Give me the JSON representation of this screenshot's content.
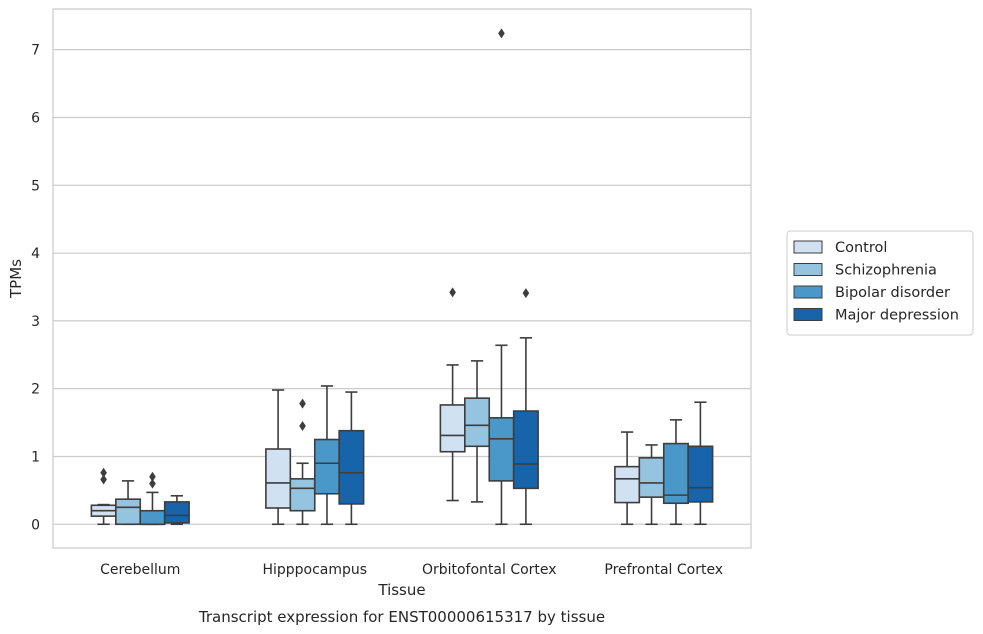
{
  "caption": "Transcript expression for ENST00000615317 by tissue",
  "chart_data": {
    "type": "boxplot",
    "xlabel": "Tissue",
    "ylabel": "TPMs",
    "ylim": [
      -0.35,
      7.6
    ],
    "yticks": [
      0,
      1,
      2,
      3,
      4,
      5,
      6,
      7
    ],
    "grid": "horizontal",
    "legend_placement": "right",
    "categories": [
      "Cerebellum",
      "Hipppocampus",
      "Orbitofontal Cortex",
      "Prefrontal Cortex"
    ],
    "series": [
      {
        "name": "Control",
        "color": "#d0e1f2",
        "boxes": [
          {
            "min": 0.0,
            "q1": 0.12,
            "median": 0.2,
            "q3": 0.28,
            "max": 0.29,
            "outliers": [
              0.66,
              0.76
            ]
          },
          {
            "min": 0.0,
            "q1": 0.24,
            "median": 0.61,
            "q3": 1.11,
            "max": 1.98,
            "outliers": []
          },
          {
            "min": 0.35,
            "q1": 1.07,
            "median": 1.31,
            "q3": 1.76,
            "max": 2.35,
            "outliers": [
              3.42
            ]
          },
          {
            "min": 0.0,
            "q1": 0.32,
            "median": 0.67,
            "q3": 0.85,
            "max": 1.36,
            "outliers": []
          }
        ]
      },
      {
        "name": "Schizophrenia",
        "color": "#94c4df",
        "boxes": [
          {
            "min": 0.0,
            "q1": 0.0,
            "median": 0.25,
            "q3": 0.37,
            "max": 0.64,
            "outliers": []
          },
          {
            "min": 0.0,
            "q1": 0.2,
            "median": 0.53,
            "q3": 0.67,
            "max": 0.9,
            "outliers": [
              1.45,
              1.78
            ]
          },
          {
            "min": 0.33,
            "q1": 1.15,
            "median": 1.46,
            "q3": 1.86,
            "max": 2.41,
            "outliers": []
          },
          {
            "min": 0.0,
            "q1": 0.4,
            "median": 0.61,
            "q3": 0.98,
            "max": 1.17,
            "outliers": []
          }
        ]
      },
      {
        "name": "Bipolar disorder",
        "color": "#4a98c9",
        "boxes": [
          {
            "min": 0.0,
            "q1": 0.0,
            "median": 0.0,
            "q3": 0.2,
            "max": 0.47,
            "outliers": [
              0.6,
              0.7
            ]
          },
          {
            "min": 0.0,
            "q1": 0.45,
            "median": 0.9,
            "q3": 1.25,
            "max": 2.04,
            "outliers": []
          },
          {
            "min": 0.0,
            "q1": 0.64,
            "median": 1.26,
            "q3": 1.57,
            "max": 2.64,
            "outliers": [
              7.24
            ]
          },
          {
            "min": 0.0,
            "q1": 0.31,
            "median": 0.43,
            "q3": 1.19,
            "max": 1.54,
            "outliers": []
          }
        ]
      },
      {
        "name": "Major depression",
        "color": "#1764ab",
        "boxes": [
          {
            "min": 0.0,
            "q1": 0.02,
            "median": 0.13,
            "q3": 0.33,
            "max": 0.42,
            "outliers": []
          },
          {
            "min": 0.0,
            "q1": 0.3,
            "median": 0.76,
            "q3": 1.38,
            "max": 1.95,
            "outliers": []
          },
          {
            "min": 0.0,
            "q1": 0.53,
            "median": 0.89,
            "q3": 1.67,
            "max": 2.75,
            "outliers": [
              3.41
            ]
          },
          {
            "min": 0.0,
            "q1": 0.33,
            "median": 0.54,
            "q3": 1.15,
            "max": 1.8,
            "outliers": []
          }
        ]
      }
    ]
  }
}
